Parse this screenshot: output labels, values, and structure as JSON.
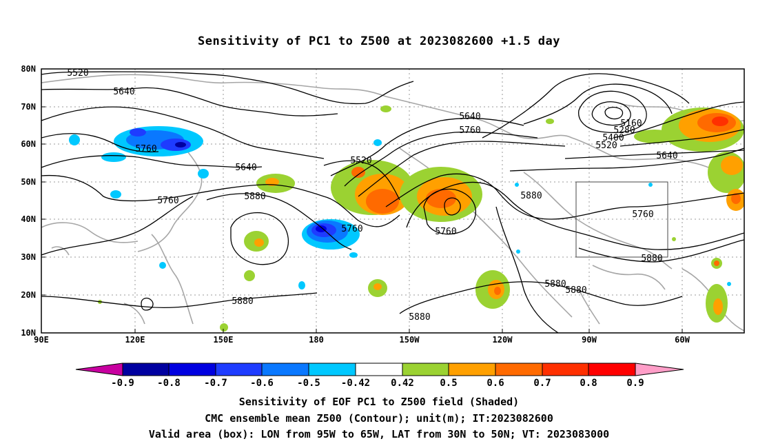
{
  "title": "Sensitivity of PC1 to Z500 at 2023082600 +1.5 day",
  "map": {
    "lat_labels": [
      "80N",
      "70N",
      "60N",
      "50N",
      "40N",
      "30N",
      "20N",
      "10N"
    ],
    "lon_labels": [
      "90E",
      "120E",
      "150E",
      "180",
      "150W",
      "120W",
      "90W",
      "60W"
    ],
    "contour_labels": [
      "5520",
      "5640",
      "5760",
      "5640",
      "5760",
      "5880",
      "5520",
      "5640",
      "5760",
      "5160",
      "5280",
      "5400",
      "5520",
      "5640",
      "5880",
      "5760",
      "5760",
      "5880",
      "5760",
      "5880",
      "5880",
      "5880",
      "5880"
    ],
    "valid_box": {
      "lon_from": "95W",
      "lon_to": "65W",
      "lat_from": "30N",
      "lat_to": "50N"
    }
  },
  "colorbar": {
    "tick_labels": [
      "-0.9",
      "-0.8",
      "-0.7",
      "-0.6",
      "-0.5",
      "-0.42",
      "0.42",
      "0.5",
      "0.6",
      "0.7",
      "0.8",
      "0.9"
    ],
    "colors": [
      "#c800a0",
      "#0000a0",
      "#0000e0",
      "#1e3cff",
      "#0a78ff",
      "#00c8ff",
      "#ffffff",
      "#9bd232",
      "#ffa000",
      "#ff6a00",
      "#ff3000",
      "#ff0000",
      "#ff9ec8"
    ]
  },
  "captions": {
    "line1": "Sensitivity of EOF PC1 to Z500 field (Shaded)",
    "line2": "CMC ensemble mean Z500 (Contour); unit(m); IT:2023082600",
    "line3": "Valid area (box): LON from 95W to 65W, LAT from 30N to 50N; VT: 2023083000"
  }
}
